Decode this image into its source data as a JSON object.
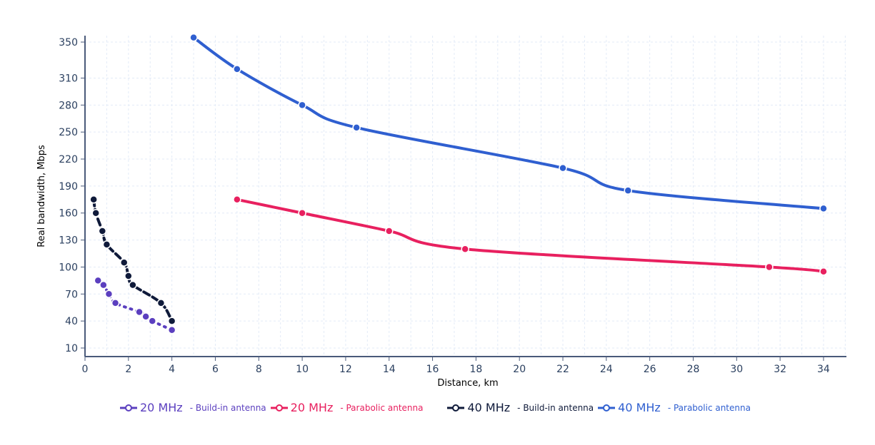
{
  "chart_data": {
    "type": "line",
    "xlabel": "Distance, km",
    "ylabel": "Real bandwidth, Mbps",
    "xlim": [
      0,
      35
    ],
    "ylim": [
      0,
      355
    ],
    "xticks": [
      0,
      2,
      4,
      6,
      8,
      10,
      12,
      14,
      16,
      18,
      20,
      22,
      24,
      26,
      28,
      30,
      32,
      34
    ],
    "yticks": [
      10,
      40,
      70,
      100,
      130,
      160,
      190,
      220,
      250,
      280,
      310,
      350
    ],
    "grid": true,
    "legend_position": "bottom",
    "series": [
      {
        "name": "20 MHz",
        "sub": "- Build-in antenna",
        "color": "#5b3fbf",
        "dash": "2 7",
        "x": [
          0.6,
          0.85,
          1.1,
          1.4,
          2.5,
          2.8,
          3.1,
          4.0
        ],
        "y": [
          85,
          80,
          70,
          60,
          50,
          45,
          40,
          30
        ]
      },
      {
        "name": "20 MHz",
        "sub": "- Parabolic antenna",
        "color": "#e8205f",
        "dash": "",
        "x": [
          7,
          10,
          14,
          17.5,
          31.5,
          34
        ],
        "y": [
          175,
          160,
          140,
          120,
          100,
          95
        ]
      },
      {
        "name": "40 MHz",
        "sub": "- Build-in antenna",
        "color": "#0f1a3a",
        "dash": "9 5",
        "x": [
          0.4,
          0.5,
          0.8,
          1.0,
          1.8,
          2.0,
          2.2,
          3.5,
          4.0
        ],
        "y": [
          175,
          160,
          140,
          125,
          105,
          90,
          80,
          60,
          40
        ]
      },
      {
        "name": "40 MHz",
        "sub": "- Parabolic antenna",
        "color": "#2f5fd0",
        "dash": "",
        "x": [
          5,
          7,
          10,
          12.5,
          22,
          25,
          34
        ],
        "y": [
          355,
          320,
          280,
          255,
          210,
          185,
          165
        ]
      }
    ]
  }
}
